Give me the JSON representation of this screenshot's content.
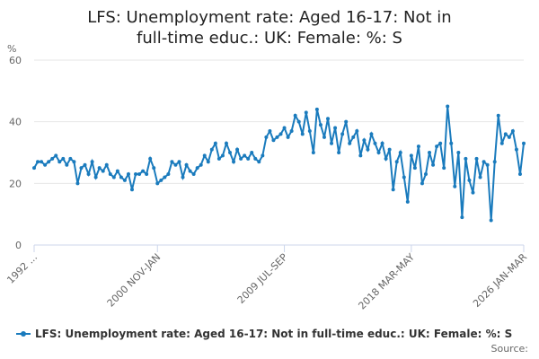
{
  "chart_data": {
    "type": "line",
    "title": "LFS: Unemployment rate: Aged 16-17: Not in full-time educ.: UK: Female: %: S",
    "y_label": "%",
    "source": "Source:",
    "categories": [
      "1992 ...",
      null,
      null,
      null,
      null,
      null,
      null,
      null,
      null,
      null,
      null,
      null,
      null,
      null,
      null,
      null,
      null,
      null,
      null,
      null,
      null,
      null,
      null,
      null,
      null,
      null,
      null,
      null,
      null,
      null,
      null,
      null,
      null,
      null,
      "2000 NOV-JAN",
      null,
      null,
      null,
      null,
      null,
      null,
      null,
      null,
      null,
      null,
      null,
      null,
      null,
      null,
      null,
      null,
      null,
      null,
      null,
      null,
      null,
      null,
      null,
      null,
      null,
      null,
      null,
      null,
      null,
      null,
      null,
      null,
      null,
      null,
      "2009 JUL-SEP",
      null,
      null,
      null,
      null,
      null,
      null,
      null,
      null,
      null,
      null,
      null,
      null,
      null,
      null,
      null,
      null,
      null,
      null,
      null,
      null,
      null,
      null,
      null,
      null,
      null,
      null,
      null,
      null,
      null,
      null,
      null,
      null,
      null,
      null,
      "2018 MAR-MAY",
      null,
      null,
      null,
      null,
      null,
      null,
      null,
      null,
      null,
      null,
      null,
      null,
      null,
      null,
      null,
      null,
      null,
      null,
      null,
      null,
      null,
      null,
      null,
      null,
      null,
      null,
      null,
      null,
      null,
      null,
      "2026 JAN-MAR"
    ],
    "series": [
      {
        "name": "LFS: Unemployment rate: Aged 16-17: Not in full-time educ.: UK: Female: %: S",
        "color": "#1a7bbd",
        "values": [
          25,
          27,
          27,
          26,
          27,
          28,
          29,
          27,
          28,
          26,
          28,
          27,
          20,
          25,
          26,
          23,
          27,
          22,
          25,
          24,
          26,
          23,
          22,
          24,
          22,
          21,
          23,
          18,
          23,
          23,
          24,
          23,
          28,
          25,
          20,
          21,
          22,
          23,
          27,
          26,
          27,
          22,
          26,
          24,
          23,
          25,
          26,
          29,
          27,
          31,
          33,
          28,
          29,
          33,
          30,
          27,
          31,
          28,
          29,
          28,
          30,
          28,
          27,
          29,
          35,
          37,
          34,
          35,
          36,
          38,
          35,
          37,
          42,
          40,
          36,
          43,
          37,
          30,
          44,
          39,
          35,
          41,
          33,
          38,
          30,
          36,
          40,
          33,
          35,
          37,
          29,
          34,
          31,
          36,
          33,
          30,
          33,
          28,
          31,
          18,
          27,
          30,
          22,
          14,
          29,
          25,
          32,
          20,
          23,
          30,
          26,
          32,
          33,
          25,
          45,
          33,
          19,
          30,
          9,
          28,
          21,
          17,
          28,
          22,
          27,
          26,
          8,
          27,
          42,
          33,
          36,
          35,
          37,
          31,
          23,
          33
        ]
      }
    ],
    "ylim": [
      0,
      60
    ],
    "yticks": [
      0,
      20,
      40,
      60
    ],
    "grid": true
  }
}
